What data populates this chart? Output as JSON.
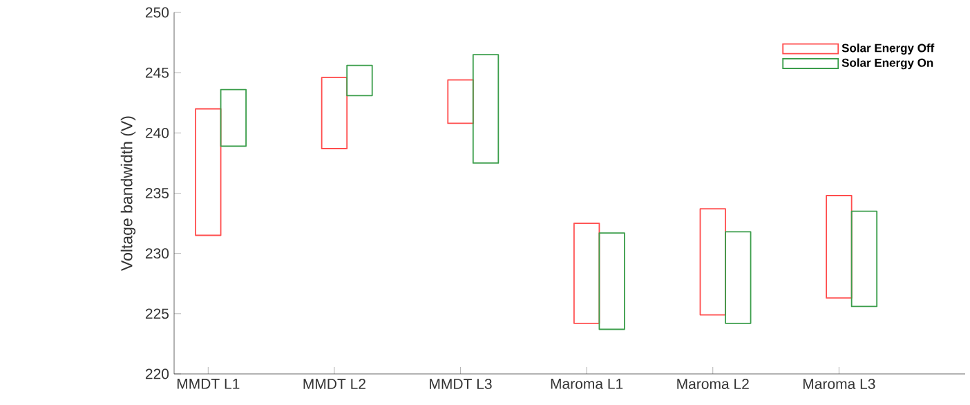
{
  "chart_data": {
    "type": "bar",
    "ylabel": "Voltage bandwidth (V)",
    "categories": [
      "MMDT L1",
      "MMDT L2",
      "MMDT L3",
      "Maroma L1",
      "Maroma L2",
      "Maroma L3"
    ],
    "series": [
      {
        "name": "Solar Energy Off",
        "color": "#ff4d4d",
        "base": [
          231.5,
          238.7,
          240.8,
          224.2,
          224.9,
          226.3
        ],
        "values": [
          10.5,
          5.9,
          3.6,
          8.3,
          8.8,
          8.5
        ]
      },
      {
        "name": "Solar Energy On",
        "color": "#3a9d4a",
        "base": [
          238.9,
          243.1,
          237.5,
          223.7,
          224.2,
          225.6
        ],
        "values": [
          4.7,
          2.5,
          9.0,
          8.0,
          7.6,
          7.9
        ]
      }
    ],
    "ylim": [
      220,
      250
    ],
    "yticks": [
      220,
      225,
      230,
      235,
      240,
      245,
      250
    ],
    "grid": false,
    "legend": "top right"
  }
}
